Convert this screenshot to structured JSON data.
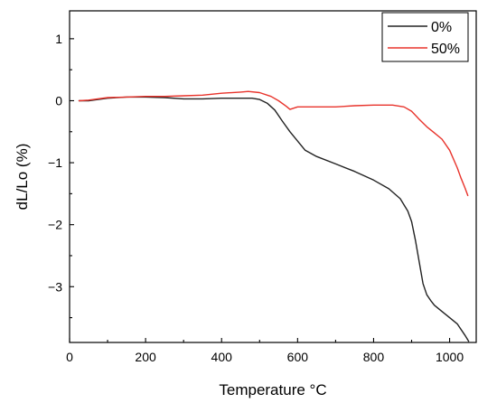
{
  "chart_data": {
    "type": "line",
    "xlabel": "Temperature °C",
    "ylabel": "dL/Lo (%)",
    "xlim": [
      0,
      1070
    ],
    "ylim": [
      -3.9,
      1.45
    ],
    "x_ticks": [
      0,
      200,
      400,
      600,
      800,
      1000
    ],
    "y_ticks": [
      1,
      0,
      -1,
      -2,
      -3
    ],
    "x_tick_labels": [
      "0",
      "200",
      "400",
      "600",
      "800",
      "1000"
    ],
    "y_tick_labels": [
      "1",
      "0",
      "−1",
      "−2",
      "−3"
    ],
    "grid": false,
    "legend_position": "top-right",
    "series": [
      {
        "name": "0%",
        "color": "#222222",
        "x": [
          25,
          50,
          100,
          150,
          200,
          250,
          300,
          350,
          400,
          450,
          480,
          500,
          520,
          540,
          560,
          580,
          600,
          620,
          650,
          700,
          750,
          800,
          840,
          870,
          890,
          900,
          910,
          920,
          930,
          940,
          950,
          960,
          980,
          1000,
          1020,
          1040,
          1050
        ],
        "y": [
          0.0,
          0.0,
          0.04,
          0.06,
          0.06,
          0.05,
          0.03,
          0.03,
          0.04,
          0.04,
          0.04,
          0.02,
          -0.04,
          -0.15,
          -0.33,
          -0.5,
          -0.65,
          -0.8,
          -0.9,
          -1.02,
          -1.14,
          -1.28,
          -1.42,
          -1.58,
          -1.78,
          -1.95,
          -2.25,
          -2.6,
          -2.95,
          -3.13,
          -3.22,
          -3.3,
          -3.4,
          -3.5,
          -3.6,
          -3.78,
          -3.88
        ]
      },
      {
        "name": "50%",
        "color": "#e8332b",
        "x": [
          25,
          50,
          100,
          150,
          200,
          250,
          300,
          350,
          400,
          450,
          470,
          500,
          530,
          550,
          570,
          580,
          590,
          600,
          650,
          700,
          750,
          800,
          850,
          880,
          900,
          920,
          940,
          960,
          980,
          1000,
          1020,
          1030,
          1040,
          1048
        ],
        "y": [
          0.0,
          0.01,
          0.05,
          0.06,
          0.07,
          0.07,
          0.08,
          0.09,
          0.12,
          0.14,
          0.15,
          0.13,
          0.07,
          0.0,
          -0.09,
          -0.14,
          -0.12,
          -0.1,
          -0.1,
          -0.1,
          -0.08,
          -0.07,
          -0.07,
          -0.1,
          -0.17,
          -0.3,
          -0.42,
          -0.52,
          -0.62,
          -0.8,
          -1.08,
          -1.25,
          -1.4,
          -1.53
        ]
      }
    ]
  }
}
